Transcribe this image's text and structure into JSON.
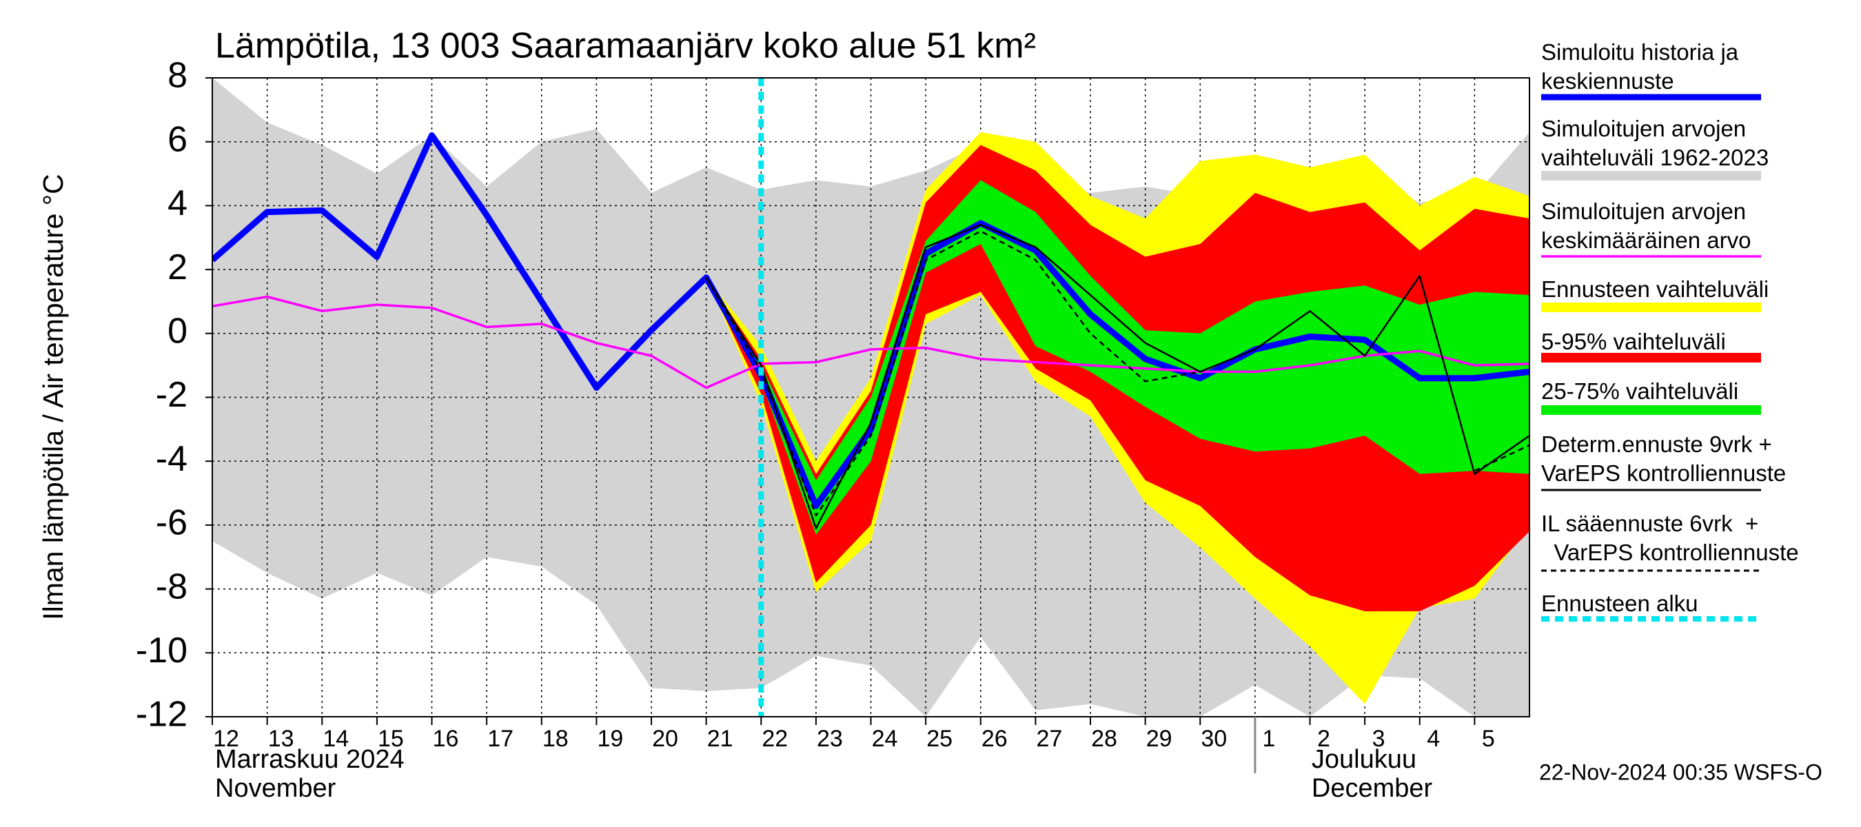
{
  "chart_data": {
    "type": "line",
    "title": "Lämpötila, 13 003 Saaramaanjärv koko alue 51 km²",
    "y_label": "Ilman lämpötila / Air temperature   °C",
    "timestamp": "22-Nov-2024 00:35 WSFS-O",
    "x": [
      0,
      1,
      2,
      3,
      4,
      5,
      6,
      7,
      8,
      9,
      10,
      11,
      12,
      13,
      14,
      15,
      16,
      17,
      18,
      19,
      20,
      21,
      22,
      23,
      24
    ],
    "xlim": [
      0,
      24
    ],
    "xticks": [
      {
        "value": 0,
        "label": "12"
      },
      {
        "value": 1,
        "label": "13"
      },
      {
        "value": 2,
        "label": "14"
      },
      {
        "value": 3,
        "label": "15"
      },
      {
        "value": 4,
        "label": "16"
      },
      {
        "value": 5,
        "label": "17"
      },
      {
        "value": 6,
        "label": "18"
      },
      {
        "value": 7,
        "label": "19"
      },
      {
        "value": 8,
        "label": "20"
      },
      {
        "value": 9,
        "label": "21"
      },
      {
        "value": 10,
        "label": "22"
      },
      {
        "value": 11,
        "label": "23"
      },
      {
        "value": 12,
        "label": "24"
      },
      {
        "value": 13,
        "label": "25"
      },
      {
        "value": 14,
        "label": "26"
      },
      {
        "value": 15,
        "label": "27"
      },
      {
        "value": 16,
        "label": "28"
      },
      {
        "value": 17,
        "label": "29"
      },
      {
        "value": 18,
        "label": "30"
      },
      {
        "value": 19,
        "label": "1"
      },
      {
        "value": 20,
        "label": "2"
      },
      {
        "value": 21,
        "label": "3"
      },
      {
        "value": 22,
        "label": "4"
      },
      {
        "value": 23,
        "label": "5"
      }
    ],
    "months": [
      {
        "x": 0,
        "fi": "Marraskuu 2024",
        "en": "November"
      },
      {
        "x": 19,
        "fi": "Joulukuu",
        "en": "December"
      }
    ],
    "ylim": [
      -12,
      8
    ],
    "yticks": [
      -12,
      -10,
      -8,
      -6,
      -4,
      -2,
      0,
      2,
      4,
      6,
      8
    ],
    "grid": true,
    "series": [
      {
        "name": "Simuloitu historia ja\nkeskiennuste",
        "kind": "line",
        "color": "#0000ff",
        "width": 9,
        "values": [
          2.3,
          3.8,
          3.85,
          2.4,
          6.2,
          3.7,
          1.0,
          -1.7,
          0.1,
          1.75,
          -1.3,
          -5.4,
          -3.0,
          2.5,
          3.45,
          2.6,
          0.6,
          -0.8,
          -1.4,
          -0.5,
          -0.1,
          -0.2,
          -1.4,
          -1.4,
          -1.2
        ]
      },
      {
        "name": "Simuloitujen arvojen\nvaihteluväli 1962-2023",
        "kind": "band",
        "color": "#d3d3d3",
        "upper": [
          8,
          6.6,
          5.9,
          5.0,
          6.2,
          4.6,
          6.0,
          6.4,
          4.4,
          5.2,
          4.5,
          4.8,
          4.6,
          5.1,
          5.9,
          5.0,
          4.4,
          4.6,
          4.3,
          4.2,
          4.4,
          4.9,
          4.1,
          4.3,
          6.3
        ],
        "lower": [
          -6.5,
          -7.5,
          -8.3,
          -7.5,
          -8.2,
          -7.0,
          -7.3,
          -8.5,
          -11.1,
          -11.2,
          -11.1,
          -10.1,
          -10.4,
          -12,
          -9.5,
          -11.8,
          -11.6,
          -12,
          -12,
          -11,
          -12,
          -10.7,
          -10.8,
          -12,
          -12
        ]
      },
      {
        "name": "Simuloitujen arvojen\nkeskimääräinen arvo",
        "kind": "line",
        "color": "#ff00ff",
        "width": 3.5,
        "values": [
          0.85,
          1.15,
          0.7,
          0.9,
          0.8,
          0.2,
          0.3,
          -0.3,
          -0.7,
          -1.7,
          -0.95,
          -0.9,
          -0.5,
          -0.45,
          -0.8,
          -0.9,
          -1.0,
          -1.1,
          -1.2,
          -1.2,
          -1.0,
          -0.7,
          -0.55,
          -1.0,
          -0.95
        ]
      },
      {
        "name": "Ennusteen vaihteluväli",
        "kind": "band",
        "color": "#ffff00",
        "upper": [
          null,
          null,
          null,
          null,
          null,
          null,
          null,
          null,
          null,
          1.75,
          -0.4,
          -4.0,
          -1.4,
          4.5,
          6.3,
          6.0,
          4.3,
          3.6,
          5.4,
          5.6,
          5.2,
          5.6,
          4.0,
          4.9,
          4.3
        ],
        "lower": [
          null,
          null,
          null,
          null,
          null,
          null,
          null,
          null,
          null,
          1.75,
          -2.2,
          -8.1,
          -6.5,
          0.3,
          1.2,
          -1.5,
          -2.6,
          -5.3,
          -6.7,
          -8.3,
          -9.8,
          -11.6,
          -8.6,
          -8.3,
          -6.0
        ]
      },
      {
        "name": "5-95% vaihteluväli",
        "kind": "band",
        "color": "#ff0000",
        "upper": [
          null,
          null,
          null,
          null,
          null,
          null,
          null,
          null,
          null,
          1.75,
          -0.8,
          -4.4,
          -1.8,
          4.1,
          5.9,
          5.1,
          3.4,
          2.4,
          2.8,
          4.4,
          3.8,
          4.1,
          2.6,
          3.9,
          3.6
        ],
        "lower": [
          null,
          null,
          null,
          null,
          null,
          null,
          null,
          null,
          null,
          1.75,
          -1.9,
          -7.8,
          -6.0,
          0.6,
          1.3,
          -1.1,
          -2.1,
          -4.6,
          -5.4,
          -7.0,
          -8.2,
          -8.7,
          -8.7,
          -7.9,
          -6.2
        ]
      },
      {
        "name": "25-75% vaihteluväli",
        "kind": "band",
        "color": "#00ee00",
        "upper": [
          null,
          null,
          null,
          null,
          null,
          null,
          null,
          null,
          null,
          1.75,
          -1.0,
          -4.6,
          -2.0,
          2.9,
          4.8,
          3.8,
          1.8,
          0.1,
          0.0,
          1.0,
          1.3,
          1.5,
          0.9,
          1.3,
          1.2
        ],
        "lower": [
          null,
          null,
          null,
          null,
          null,
          null,
          null,
          null,
          null,
          1.75,
          -1.5,
          -6.3,
          -4.0,
          1.9,
          2.8,
          -0.4,
          -1.2,
          -2.3,
          -3.3,
          -3.7,
          -3.6,
          -3.2,
          -4.4,
          -4.3,
          -4.4
        ]
      },
      {
        "name": "Determ.ennuste 9vrk +\nVarEPS kontrolliennuste",
        "kind": "line",
        "color": "#000000",
        "width": 2.5,
        "values": [
          null,
          null,
          null,
          null,
          null,
          null,
          null,
          null,
          null,
          1.75,
          -1.0,
          -6.1,
          -2.8,
          2.7,
          3.4,
          2.7,
          1.2,
          -0.3,
          -1.2,
          -0.5,
          0.7,
          -0.7,
          1.8,
          -4.4,
          -3.2
        ]
      },
      {
        "name": "IL sääennuste 6vrk  +\n  VarEPS kontrolliennuste",
        "kind": "line",
        "color": "#000000",
        "width": 2.5,
        "dashed": true,
        "values": [
          null,
          null,
          null,
          null,
          null,
          null,
          null,
          null,
          null,
          1.75,
          -1.2,
          -5.7,
          -3.2,
          2.3,
          3.2,
          2.3,
          0.0,
          -1.5,
          -1.2,
          null,
          null,
          null,
          null,
          -4.3,
          -3.5
        ]
      }
    ],
    "forecast_start": {
      "name": "Ennusteen alku",
      "x": 10,
      "color": "#00e5ee"
    }
  }
}
